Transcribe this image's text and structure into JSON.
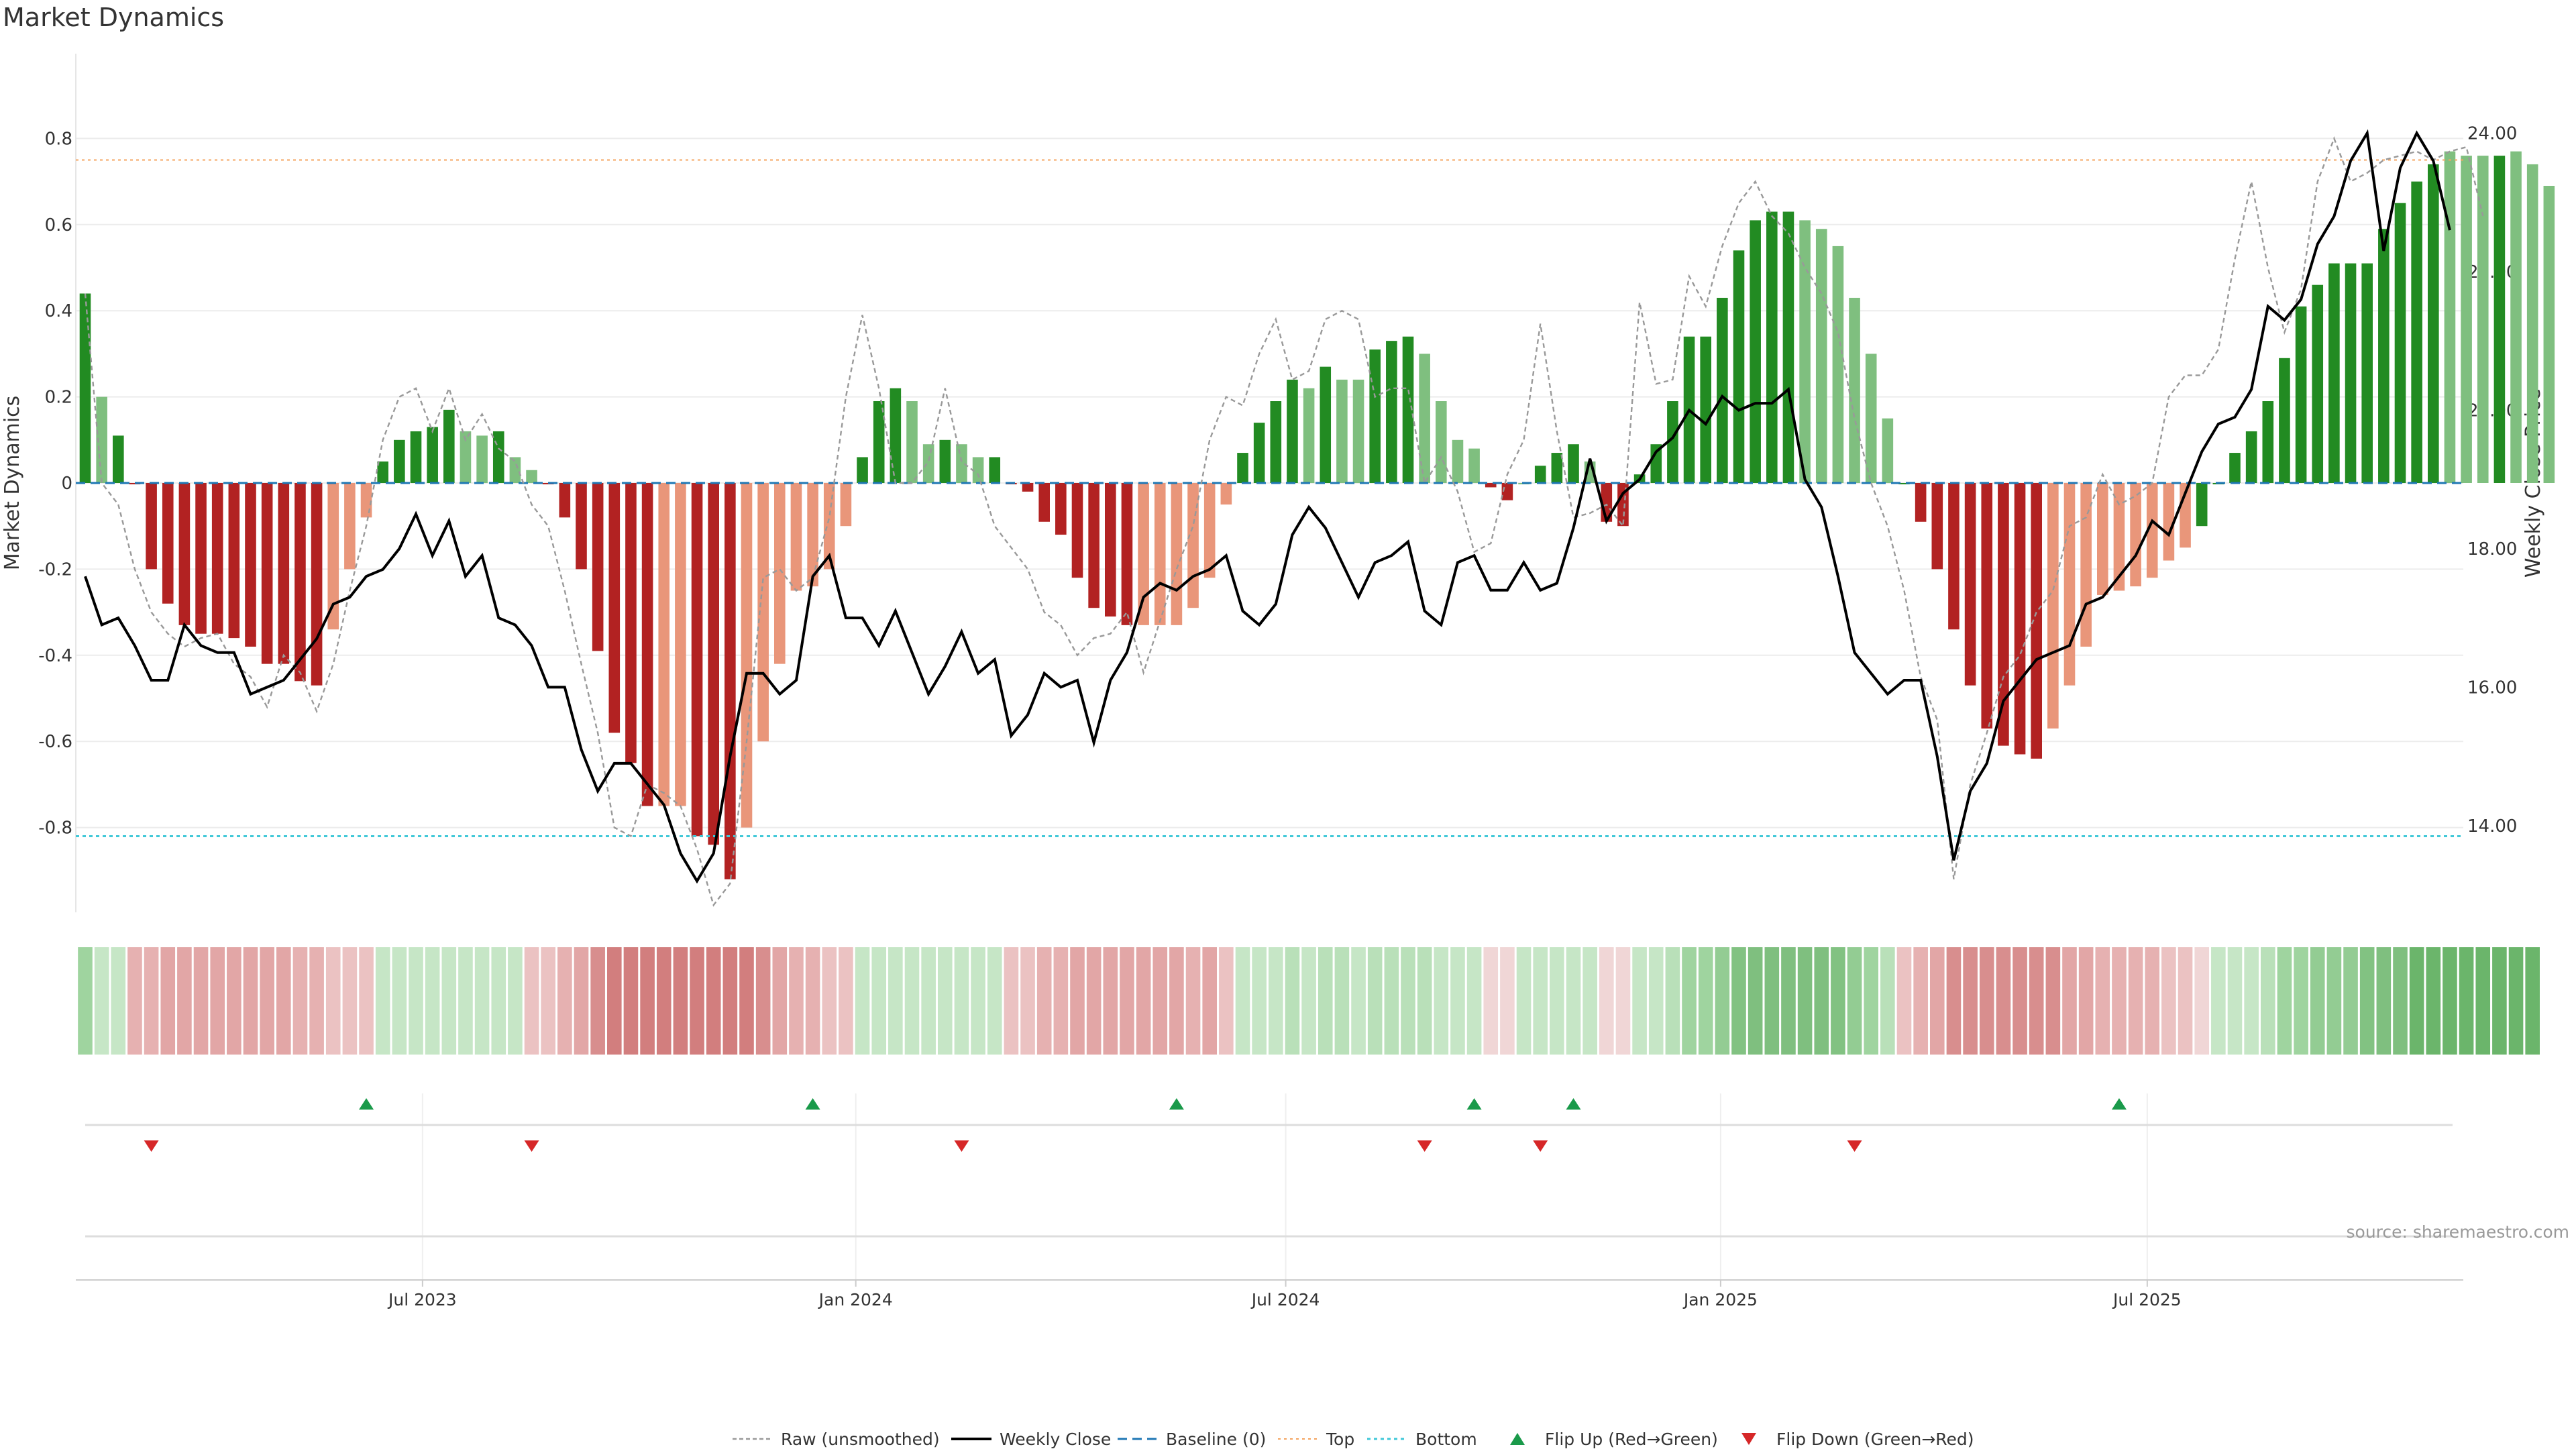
{
  "chart_data": {
    "type": "bar",
    "title": "Market Dynamics",
    "ylabel_left": "Market Dynamics",
    "ylabel_right": "Weekly Close Price",
    "ylim_left": [
      -1.0,
      1.0
    ],
    "ylim_right": [
      12.7,
      25.1
    ],
    "yticks_left": [
      "0.8",
      "0.6",
      "0.4",
      "0.2",
      "0",
      "-0.2",
      "-0.4",
      "-0.6",
      "-0.8"
    ],
    "yticks_left_values": [
      0.8,
      0.6,
      0.4,
      0.2,
      0,
      -0.2,
      -0.4,
      -0.6,
      -0.8
    ],
    "yticks_right": [
      "24.00",
      "22.00",
      "20.00",
      "18.00",
      "16.00",
      "14.00"
    ],
    "yticks_right_values": [
      24,
      22,
      20,
      18,
      16,
      14
    ],
    "x_ticks": [
      "Jul 2023",
      "Jan 2024",
      "Jul 2024",
      "Jan 2025",
      "Jul 2025"
    ],
    "x_tick_weeks": [
      20.4,
      46.6,
      72.6,
      98.9,
      124.7
    ],
    "top_threshold": 0.75,
    "bottom_threshold": -0.82,
    "baseline": 0,
    "bar_values": [
      0.44,
      0.2,
      0.11,
      0,
      -0.2,
      -0.28,
      -0.33,
      -0.35,
      -0.35,
      -0.36,
      -0.38,
      -0.42,
      -0.42,
      -0.46,
      -0.47,
      -0.34,
      -0.2,
      -0.08,
      0.05,
      0.1,
      0.12,
      0.13,
      0.17,
      0.12,
      0.11,
      0.12,
      0.06,
      0.03,
      0,
      -0.08,
      -0.2,
      -0.39,
      -0.58,
      -0.65,
      -0.75,
      -0.75,
      -0.75,
      -0.82,
      -0.84,
      -0.92,
      -0.8,
      -0.6,
      -0.42,
      -0.25,
      -0.24,
      -0.2,
      -0.1,
      0.06,
      0.19,
      0.22,
      0.19,
      0.09,
      0.1,
      0.09,
      0.06,
      0.06,
      0,
      -0.02,
      -0.09,
      -0.12,
      -0.22,
      -0.29,
      -0.31,
      -0.33,
      -0.33,
      -0.33,
      -0.33,
      -0.29,
      -0.22,
      -0.05,
      0.07,
      0.14,
      0.19,
      0.24,
      0.22,
      0.27,
      0.24,
      0.24,
      0.31,
      0.33,
      0.34,
      0.3,
      0.19,
      0.1,
      0.08,
      -0.01,
      -0.04,
      0,
      0.04,
      0.07,
      0.09,
      0.05,
      -0.09,
      -0.1,
      0.02,
      0.09,
      0.19,
      0.34,
      0.34,
      0.43,
      0.54,
      0.61,
      0.63,
      0.63,
      0.61,
      0.59,
      0.55,
      0.43,
      0.3,
      0.15,
      0,
      -0.09,
      -0.2,
      -0.34,
      -0.47,
      -0.57,
      -0.61,
      -0.63,
      -0.64,
      -0.57,
      -0.47,
      -0.38,
      -0.26,
      -0.25,
      -0.24,
      -0.22,
      -0.18,
      -0.15,
      -0.1,
      0,
      0.07,
      0.12,
      0.19,
      0.29,
      0.41,
      0.46,
      0.51,
      0.51,
      0.51,
      0.59,
      0.65,
      0.7,
      0.74,
      0.77,
      0.76,
      0.76,
      0.76,
      0.77,
      0.74,
      0.69
    ],
    "bar_colors": [
      "#228b22",
      "#7fbf7f",
      "#228b22",
      "#b22222",
      "#b22222",
      "#b22222",
      "#b22222",
      "#b22222",
      "#b22222",
      "#b22222",
      "#b22222",
      "#b22222",
      "#b22222",
      "#b22222",
      "#b22222",
      "#e9967a",
      "#e9967a",
      "#e9967a",
      "#228b22",
      "#228b22",
      "#228b22",
      "#228b22",
      "#228b22",
      "#7fbf7f",
      "#7fbf7f",
      "#228b22",
      "#7fbf7f",
      "#7fbf7f",
      "#b22222",
      "#b22222",
      "#b22222",
      "#b22222",
      "#b22222",
      "#b22222",
      "#b22222",
      "#e9967a",
      "#e9967a",
      "#b22222",
      "#b22222",
      "#b22222",
      "#e9967a",
      "#e9967a",
      "#e9967a",
      "#e9967a",
      "#e9967a",
      "#e9967a",
      "#e9967a",
      "#228b22",
      "#228b22",
      "#228b22",
      "#7fbf7f",
      "#7fbf7f",
      "#228b22",
      "#7fbf7f",
      "#7fbf7f",
      "#228b22",
      "#b22222",
      "#b22222",
      "#b22222",
      "#b22222",
      "#b22222",
      "#b22222",
      "#b22222",
      "#b22222",
      "#e9967a",
      "#e9967a",
      "#e9967a",
      "#e9967a",
      "#e9967a",
      "#e9967a",
      "#228b22",
      "#228b22",
      "#228b22",
      "#228b22",
      "#7fbf7f",
      "#228b22",
      "#7fbf7f",
      "#7fbf7f",
      "#228b22",
      "#228b22",
      "#228b22",
      "#7fbf7f",
      "#7fbf7f",
      "#7fbf7f",
      "#7fbf7f",
      "#b22222",
      "#b22222",
      "#7fbf7f",
      "#228b22",
      "#228b22",
      "#228b22",
      "#7fbf7f",
      "#b22222",
      "#b22222",
      "#228b22",
      "#228b22",
      "#228b22",
      "#228b22",
      "#228b22",
      "#228b22",
      "#228b22",
      "#228b22",
      "#228b22",
      "#228b22",
      "#7fbf7f",
      "#7fbf7f",
      "#7fbf7f",
      "#7fbf7f",
      "#7fbf7f",
      "#7fbf7f",
      "#228b22",
      "#b22222",
      "#b22222",
      "#b22222",
      "#b22222",
      "#b22222",
      "#b22222",
      "#b22222",
      "#b22222",
      "#e9967a",
      "#e9967a",
      "#e9967a",
      "#e9967a",
      "#e9967a",
      "#e9967a",
      "#e9967a",
      "#e9967a",
      "#e9967a",
      "#228b22",
      "#228b22",
      "#228b22",
      "#228b22",
      "#228b22",
      "#228b22",
      "#228b22",
      "#228b22",
      "#228b22",
      "#228b22",
      "#228b22",
      "#228b22",
      "#228b22",
      "#228b22",
      "#228b22",
      "#7fbf7f",
      "#7fbf7f",
      "#7fbf7f",
      "#228b22",
      "#7fbf7f",
      "#7fbf7f",
      "#7fbf7f"
    ],
    "raw_values": [
      0.44,
      0.0,
      -0.05,
      -0.2,
      -0.3,
      -0.35,
      -0.38,
      -0.36,
      -0.35,
      -0.42,
      -0.45,
      -0.52,
      -0.4,
      -0.44,
      -0.53,
      -0.42,
      -0.25,
      -0.1,
      0.1,
      0.2,
      0.22,
      0.12,
      0.22,
      0.1,
      0.16,
      0.08,
      0.05,
      -0.05,
      -0.1,
      -0.25,
      -0.42,
      -0.58,
      -0.8,
      -0.82,
      -0.7,
      -0.72,
      -0.75,
      -0.85,
      -0.98,
      -0.93,
      -0.6,
      -0.22,
      -0.2,
      -0.25,
      -0.22,
      -0.08,
      0.2,
      0.39,
      0.22,
      0.0,
      0.0,
      0.05,
      0.22,
      0.05,
      0.02,
      -0.1,
      -0.15,
      -0.2,
      -0.3,
      -0.33,
      -0.4,
      -0.36,
      -0.35,
      -0.3,
      -0.44,
      -0.32,
      -0.2,
      -0.1,
      0.1,
      0.2,
      0.18,
      0.3,
      0.38,
      0.24,
      0.26,
      0.38,
      0.4,
      0.38,
      0.2,
      0.22,
      0.22,
      0.0,
      0.06,
      -0.02,
      -0.16,
      -0.14,
      0.02,
      0.1,
      0.37,
      0.12,
      -0.08,
      -0.07,
      -0.05,
      -0.1,
      0.42,
      0.23,
      0.24,
      0.48,
      0.41,
      0.55,
      0.65,
      0.7,
      0.62,
      0.58,
      0.5,
      0.44,
      0.35,
      0.15,
      0.0,
      -0.1,
      -0.25,
      -0.45,
      -0.55,
      -0.92,
      -0.7,
      -0.58,
      -0.45,
      -0.4,
      -0.3,
      -0.25,
      -0.1,
      -0.08,
      0.02,
      -0.05,
      -0.03,
      0.0,
      0.2,
      0.25,
      0.25,
      0.31,
      0.52,
      0.7,
      0.5,
      0.35,
      0.45,
      0.7,
      0.8,
      0.7,
      0.72,
      0.75,
      0.76,
      0.77,
      0.75,
      0.77,
      0.78,
      0.62
    ],
    "close_values": [
      17.6,
      16.9,
      17.0,
      16.6,
      16.1,
      16.1,
      16.9,
      16.6,
      16.5,
      16.5,
      15.9,
      16.0,
      16.1,
      16.4,
      16.7,
      17.2,
      17.3,
      17.6,
      17.7,
      18.0,
      18.5,
      17.9,
      18.4,
      17.6,
      17.9,
      17.0,
      16.9,
      16.6,
      16.0,
      16.0,
      15.1,
      14.5,
      14.9,
      14.9,
      14.6,
      14.3,
      13.6,
      13.2,
      13.6,
      15.0,
      16.2,
      16.2,
      15.9,
      16.1,
      17.6,
      17.9,
      17.0,
      17.0,
      16.6,
      17.1,
      16.5,
      15.9,
      16.3,
      16.8,
      16.2,
      16.4,
      15.3,
      15.6,
      16.2,
      16.0,
      16.1,
      15.2,
      16.1,
      16.5,
      17.3,
      17.5,
      17.4,
      17.6,
      17.7,
      17.9,
      17.1,
      16.9,
      17.2,
      18.2,
      18.6,
      18.3,
      17.8,
      17.3,
      17.8,
      17.9,
      18.1,
      17.1,
      16.9,
      17.8,
      17.9,
      17.4,
      17.4,
      17.8,
      17.4,
      17.5,
      18.3,
      19.3,
      18.4,
      18.8,
      19.0,
      19.4,
      19.6,
      20.0,
      19.8,
      20.2,
      20.0,
      20.1,
      20.1,
      20.3,
      19.0,
      18.6,
      17.6,
      16.5,
      16.2,
      15.9,
      16.1,
      16.1,
      15.0,
      13.5,
      14.5,
      14.9,
      15.8,
      16.1,
      16.4,
      16.5,
      16.6,
      17.2,
      17.3,
      17.6,
      17.9,
      18.4,
      18.2,
      18.8,
      19.4,
      19.8,
      19.9,
      20.3,
      21.5,
      21.3,
      21.6,
      22.4,
      22.8,
      23.6,
      24.0,
      22.3,
      23.5,
      24.0,
      23.6,
      22.6
    ],
    "heat_colors": [
      "#9fd49f",
      "#c6e6c6",
      "#c6e6c6",
      "#e6b1b1",
      "#e6b1b1",
      "#e2a6a6",
      "#e2a6a6",
      "#e2a6a6",
      "#e2a6a6",
      "#e2a6a6",
      "#e2a6a6",
      "#e2a6a6",
      "#e2a6a6",
      "#e6b1b1",
      "#e6b1b1",
      "#ebc2c2",
      "#ebc2c2",
      "#ebc2c2",
      "#c6e6c6",
      "#c6e6c6",
      "#c6e6c6",
      "#c6e6c6",
      "#c6e6c6",
      "#c6e6c6",
      "#c6e6c6",
      "#c6e6c6",
      "#c6e6c6",
      "#ebc2c2",
      "#ebc2c2",
      "#e6b1b1",
      "#e2a6a6",
      "#d88e8e",
      "#d27e7e",
      "#d27e7e",
      "#d27e7e",
      "#d27e7e",
      "#d27e7e",
      "#d27e7e",
      "#d27e7e",
      "#d27e7e",
      "#d27e7e",
      "#d88e8e",
      "#e2a6a6",
      "#e6b1b1",
      "#e6b1b1",
      "#ebc2c2",
      "#ebc2c2",
      "#c6e6c6",
      "#c6e6c6",
      "#c6e6c6",
      "#c6e6c6",
      "#c6e6c6",
      "#c6e6c6",
      "#c6e6c6",
      "#c6e6c6",
      "#c6e6c6",
      "#ebc2c2",
      "#ebc2c2",
      "#e6b1b1",
      "#e6b1b1",
      "#e2a6a6",
      "#e2a6a6",
      "#e2a6a6",
      "#e2a6a6",
      "#e2a6a6",
      "#e2a6a6",
      "#e2a6a6",
      "#e6b1b1",
      "#e2a6a6",
      "#ebc2c2",
      "#c6e6c6",
      "#c6e6c6",
      "#c6e6c6",
      "#b9e0b9",
      "#c6e6c6",
      "#b9e0b9",
      "#b9e0b9",
      "#c6e6c6",
      "#b9e0b9",
      "#b9e0b9",
      "#b9e0b9",
      "#b9e0b9",
      "#c6e6c6",
      "#c6e6c6",
      "#c6e6c6",
      "#f0d6d6",
      "#f0d6d6",
      "#c6e6c6",
      "#c6e6c6",
      "#c6e6c6",
      "#c6e6c6",
      "#c6e6c6",
      "#f0d6d6",
      "#f0d6d6",
      "#c6e6c6",
      "#c6e6c6",
      "#b9e0b9",
      "#9fd49f",
      "#9fd49f",
      "#93cc93",
      "#82c282",
      "#7fbf7f",
      "#7fbf7f",
      "#7fbf7f",
      "#7fbf7f",
      "#7fbf7f",
      "#82c282",
      "#93cc93",
      "#9fd49f",
      "#b9e0b9",
      "#ebc2c2",
      "#e6b1b1",
      "#e2a6a6",
      "#d88e8e",
      "#d88e8e",
      "#d88e8e",
      "#d88e8e",
      "#d88e8e",
      "#d88e8e",
      "#d88e8e",
      "#e2a6a6",
      "#e2a6a6",
      "#e6b1b1",
      "#e6b1b1",
      "#e6b1b1",
      "#e6b1b1",
      "#ebc2c2",
      "#ebc2c2",
      "#f0d6d6",
      "#c6e6c6",
      "#c6e6c6",
      "#c6e6c6",
      "#b9e0b9",
      "#9fd49f",
      "#9fd49f",
      "#93cc93",
      "#93cc93",
      "#93cc93",
      "#82c282",
      "#7fbf7f",
      "#7fbf7f",
      "#6bb56b",
      "#6bb56b",
      "#6bb56b",
      "#6bb56b",
      "#6bb56b",
      "#6bb56b",
      "#6bb56b",
      "#6bb56b"
    ],
    "flip_up_weeks": [
      17,
      44,
      66,
      84,
      90,
      123
    ],
    "flip_down_weeks": [
      4,
      27,
      53,
      81,
      88,
      107
    ],
    "legend": {
      "raw": "Raw (unsmoothed)",
      "close": "Weekly Close",
      "baseline": "Baseline (0)",
      "top": "Top",
      "bottom": "Bottom",
      "flip_up": "Flip Up (Red→Green)",
      "flip_down": "Flip Down (Green→Red)"
    },
    "colors": {
      "raw": "#999999",
      "close": "#000000",
      "baseline": "#1f77b4",
      "top": "#f4a460",
      "bottom": "#40c8d8",
      "flip_up": "#1a9a4a",
      "flip_down": "#d62728"
    }
  },
  "source": "source: sharemaestro.com"
}
